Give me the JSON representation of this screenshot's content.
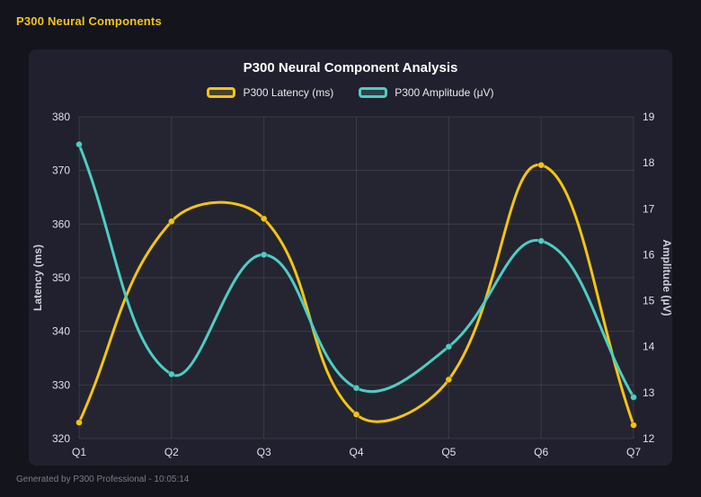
{
  "page": {
    "header": "P300 Neural Components",
    "footer": "Generated by P300 Professional - 10:05:14"
  },
  "colors": {
    "header_accent": "#f2c511",
    "latency_series": "#f2c511",
    "amplitude_series": "#4ecdc4",
    "background": "#14141d",
    "card_background": "#20202e",
    "grid": "rgba(255,255,255,0.10)"
  },
  "chart_data": {
    "type": "line",
    "title": "P300 Neural Component Analysis",
    "categories": [
      "Q1",
      "Q2",
      "Q3",
      "Q4",
      "Q5",
      "Q6",
      "Q7"
    ],
    "series": [
      {
        "name": "P300 Latency (ms)",
        "axis": "left",
        "color": "#f2c511",
        "values": [
          323,
          360.5,
          361,
          324.5,
          331,
          371,
          322.5
        ]
      },
      {
        "name": "P300 Amplitude (μV)",
        "axis": "right",
        "color": "#4ecdc4",
        "values": [
          18.4,
          13.4,
          16.0,
          13.1,
          14.0,
          16.3,
          12.9
        ]
      }
    ],
    "left_axis": {
      "label": "Latency (ms)",
      "min": 320,
      "max": 380,
      "step": 10,
      "ticks": [
        320,
        330,
        340,
        350,
        360,
        370,
        380
      ]
    },
    "right_axis": {
      "label": "Amplitude (μV)",
      "min": 12,
      "max": 19,
      "step": 1,
      "ticks": [
        12,
        13,
        14,
        15,
        16,
        17,
        18,
        19
      ]
    },
    "grid": true,
    "legend_position": "top",
    "line_tension": 0.4
  }
}
